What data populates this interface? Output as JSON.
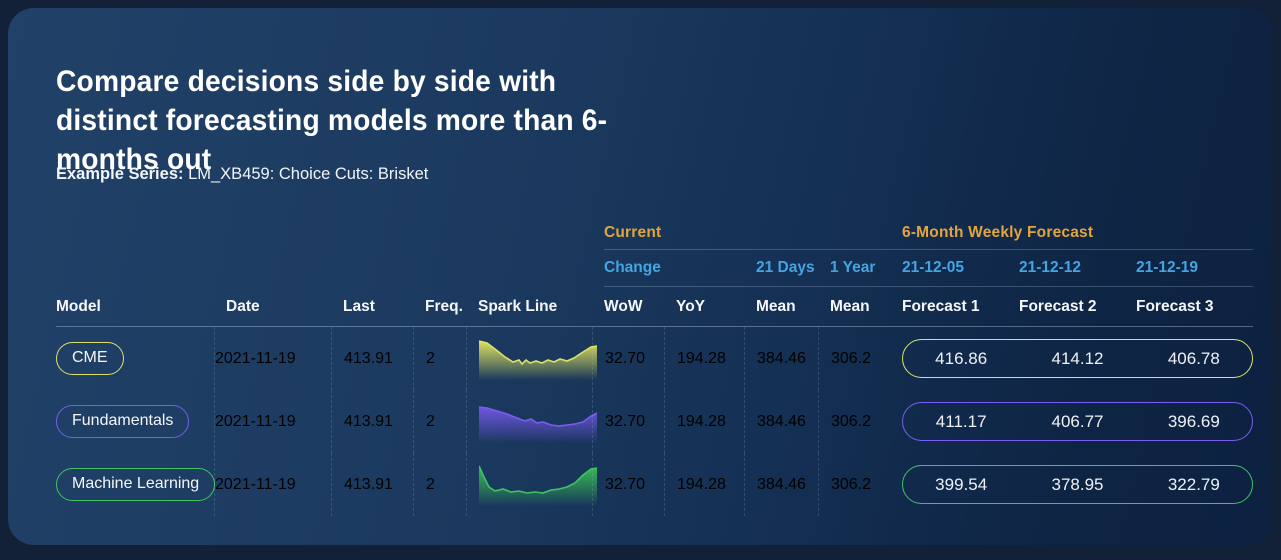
{
  "page": {
    "title": "Compare decisions side by side with distinct forecasting models more than 6-months out",
    "series_label": "Example Series:",
    "series_value": " LM_XB459: Choice Cuts: Brisket"
  },
  "colors": {
    "group_header": "#e2a53e",
    "sub_header": "#45a4e3",
    "card_bg_left": "#214168",
    "card_bg_right": "#0d2241"
  },
  "table": {
    "group_headers": {
      "current": "Current",
      "forecast": "6-Month Weekly Forecast"
    },
    "sub_headers": {
      "change": "Change",
      "days21": "21 Days",
      "year1": "1 Year",
      "dates": [
        "21-12-05",
        "21-12-12",
        "21-12-19"
      ]
    },
    "columns": [
      "Model",
      "Date",
      "Last",
      "Freq.",
      "Spark Line",
      "WoW",
      "YoY",
      "Mean",
      "Mean",
      "Forecast 1",
      "Forecast 2",
      "Forecast 3"
    ],
    "rows": [
      {
        "model": "CME",
        "date": "2021-11-19",
        "last": "413.91",
        "freq": "2",
        "wow": "32.70",
        "yoy": "194.28",
        "mean_21d": "384.46",
        "mean_1y": "306.2",
        "forecasts": [
          "416.86",
          "414.12",
          "406.78"
        ],
        "accent": "#dde26a",
        "spark_fill": "#e6e95e",
        "spark": [
          [
            0,
            3
          ],
          [
            8,
            5
          ],
          [
            16,
            11
          ],
          [
            26,
            19
          ],
          [
            34,
            24
          ],
          [
            40,
            22
          ],
          [
            43,
            26
          ],
          [
            47,
            22
          ],
          [
            51,
            25
          ],
          [
            57,
            23
          ],
          [
            63,
            25
          ],
          [
            69,
            22
          ],
          [
            75,
            24
          ],
          [
            81,
            21
          ],
          [
            88,
            23
          ],
          [
            95,
            20
          ],
          [
            104,
            14
          ],
          [
            112,
            9
          ],
          [
            118,
            8
          ]
        ]
      },
      {
        "model": "Fundamentals",
        "date": "2021-11-19",
        "last": "413.91",
        "freq": "2",
        "wow": "32.70",
        "yoy": "194.28",
        "mean_21d": "384.46",
        "mean_1y": "306.2",
        "forecasts": [
          "411.17",
          "406.77",
          "396.69"
        ],
        "accent": "#7a5cf0",
        "spark_fill": "#7458e8",
        "spark": [
          [
            0,
            6
          ],
          [
            8,
            7
          ],
          [
            18,
            10
          ],
          [
            28,
            13
          ],
          [
            38,
            17
          ],
          [
            46,
            20
          ],
          [
            52,
            18
          ],
          [
            58,
            22
          ],
          [
            64,
            21
          ],
          [
            72,
            24
          ],
          [
            80,
            25
          ],
          [
            88,
            24
          ],
          [
            96,
            23
          ],
          [
            104,
            21
          ],
          [
            112,
            15
          ],
          [
            118,
            12
          ]
        ]
      },
      {
        "model": "Machine Learning",
        "date": "2021-11-19",
        "last": "413.91",
        "freq": "2",
        "wow": "32.70",
        "yoy": "194.28",
        "mean_21d": "384.46",
        "mean_1y": "306.2",
        "forecasts": [
          "399.54",
          "378.95",
          "322.79"
        ],
        "accent": "#3fc463",
        "spark_fill": "#3bc356",
        "spark": [
          [
            0,
            2
          ],
          [
            5,
            13
          ],
          [
            10,
            23
          ],
          [
            16,
            27
          ],
          [
            24,
            25
          ],
          [
            32,
            28
          ],
          [
            40,
            27
          ],
          [
            48,
            29
          ],
          [
            56,
            28
          ],
          [
            64,
            29
          ],
          [
            72,
            26
          ],
          [
            80,
            25
          ],
          [
            88,
            23
          ],
          [
            96,
            19
          ],
          [
            104,
            11
          ],
          [
            112,
            5
          ],
          [
            118,
            4
          ]
        ]
      }
    ]
  }
}
